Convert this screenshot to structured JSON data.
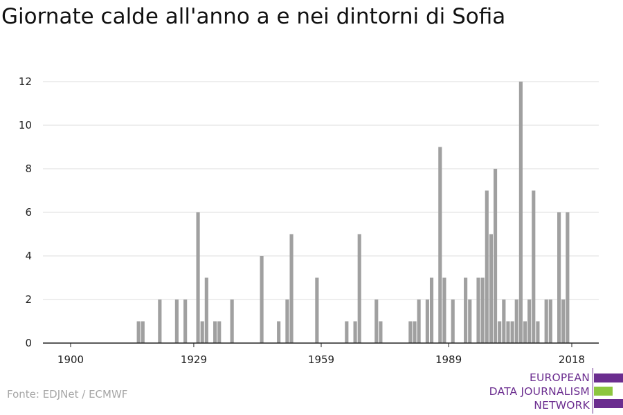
{
  "title": "Giornate calde all'anno a e nei dintorni di Sofia",
  "source": "Fonte: EDJNet / ECMWF",
  "logo": {
    "lines": [
      "EUROPEAN",
      "DATA JOURNALISM",
      "NETWORK"
    ],
    "colors": {
      "purple": "#6b2d8f",
      "green": "#8cc63f"
    }
  },
  "colors": {
    "bar": "#a0a0a0",
    "grid": "#dddddd",
    "axis": "#222222"
  },
  "chart_data": {
    "type": "bar",
    "title": "Giornate calde all'anno a e nei dintorni di Sofia",
    "xlabel": "",
    "ylabel": "",
    "xlim": [
      1900,
      2018
    ],
    "ylim": [
      0,
      12
    ],
    "grid": true,
    "xticks": [
      1900,
      1929,
      1959,
      1989,
      2018
    ],
    "yticks": [
      0,
      2,
      4,
      6,
      8,
      10,
      12
    ],
    "x": [
      1916,
      1917,
      1921,
      1925,
      1927,
      1930,
      1931,
      1932,
      1934,
      1935,
      1938,
      1945,
      1949,
      1951,
      1952,
      1958,
      1965,
      1967,
      1968,
      1972,
      1973,
      1980,
      1981,
      1982,
      1984,
      1985,
      1987,
      1988,
      1990,
      1993,
      1994,
      1996,
      1997,
      1998,
      1999,
      2000,
      2001,
      2002,
      2003,
      2004,
      2005,
      2006,
      2007,
      2008,
      2009,
      2010,
      2012,
      2013,
      2015,
      2016,
      2017
    ],
    "values": [
      1,
      1,
      2,
      2,
      2,
      6,
      1,
      3,
      1,
      1,
      2,
      4,
      1,
      2,
      5,
      3,
      1,
      1,
      5,
      2,
      1,
      1,
      1,
      2,
      2,
      3,
      9,
      3,
      2,
      3,
      2,
      3,
      3,
      7,
      5,
      8,
      1,
      2,
      1,
      1,
      2,
      12,
      1,
      2,
      7,
      1,
      2,
      2,
      6,
      2,
      6
    ]
  }
}
